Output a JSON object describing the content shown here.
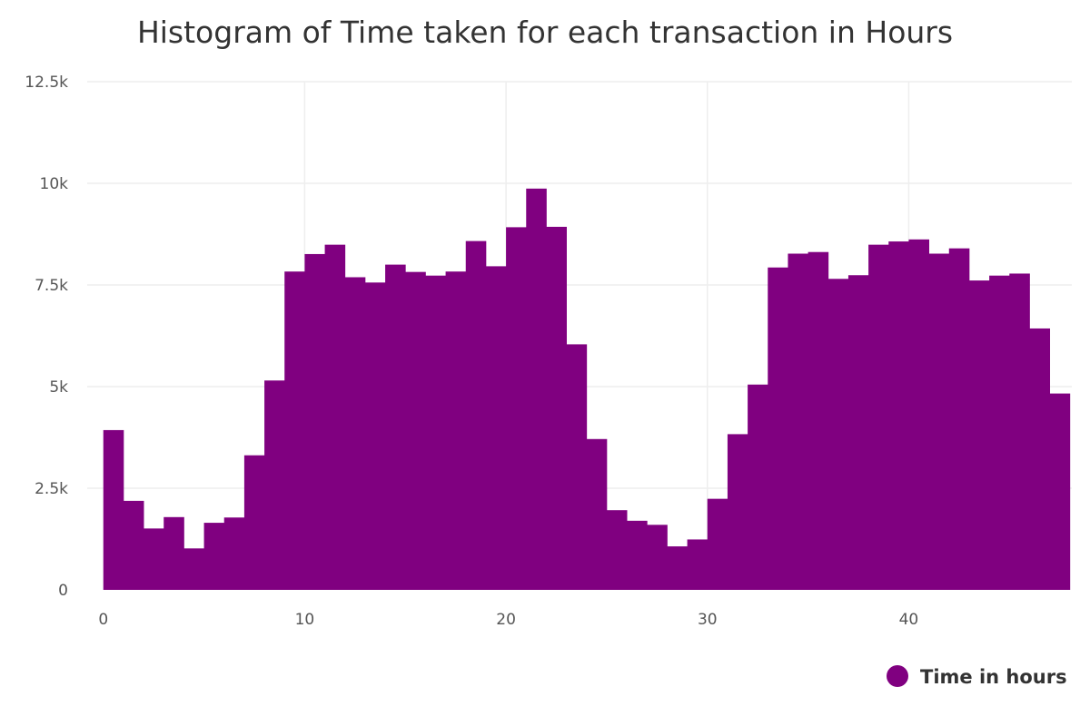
{
  "chart_data": {
    "type": "bar",
    "title": "Histogram of Time taken for each transaction in Hours",
    "xlabel": "",
    "ylabel": "",
    "bin_width": 1,
    "x": [
      0,
      1,
      2,
      3,
      4,
      5,
      6,
      7,
      8,
      9,
      10,
      11,
      12,
      13,
      14,
      15,
      16,
      17,
      18,
      19,
      20,
      21,
      22,
      23,
      24,
      25,
      26,
      27,
      28,
      29,
      30,
      31,
      32,
      33,
      34,
      35,
      36,
      37,
      38,
      39,
      40,
      41,
      42,
      43,
      44,
      45,
      46,
      47
    ],
    "series": [
      {
        "name": "Time in hours",
        "color": "#800080",
        "values": [
          3930,
          2190,
          1510,
          1790,
          1020,
          1650,
          1780,
          3310,
          5150,
          7830,
          8260,
          8490,
          7690,
          7560,
          8000,
          7820,
          7730,
          7830,
          8580,
          7960,
          8920,
          9870,
          8930,
          6040,
          3710,
          1960,
          1700,
          1600,
          1070,
          1240,
          2240,
          3830,
          5050,
          7930,
          8270,
          8310,
          7650,
          7740,
          8490,
          8570,
          8620,
          8270,
          8400,
          7610,
          7730,
          7780,
          6430,
          4830
        ]
      }
    ],
    "xlim": [
      -0.8,
      48.1
    ],
    "ylim": [
      0,
      12500
    ],
    "x_ticks": [
      0,
      10,
      20,
      30,
      40
    ],
    "x_tick_labels": [
      "0",
      "10",
      "20",
      "30",
      "40"
    ],
    "y_ticks": [
      0,
      2500,
      5000,
      7500,
      10000,
      12500
    ],
    "y_tick_labels": [
      "0",
      "2.5k",
      "5k",
      "7.5k",
      "10k",
      "12.5k"
    ],
    "grid": true,
    "legend": {
      "placement": "bottom-right",
      "entries": [
        "Time in hours"
      ]
    }
  }
}
